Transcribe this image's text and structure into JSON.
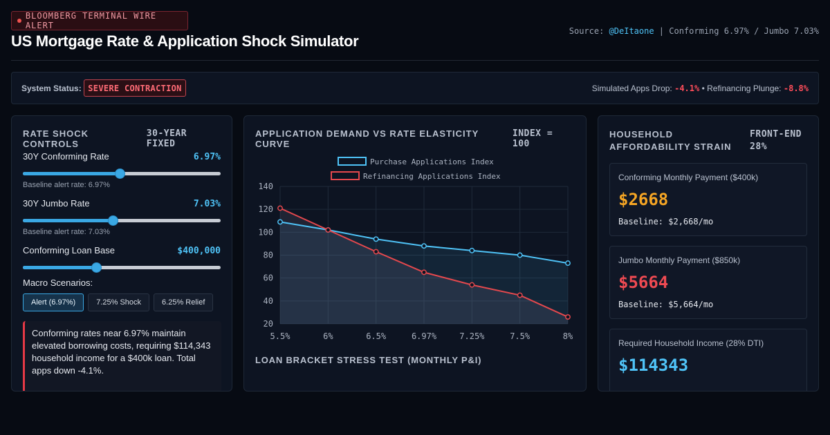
{
  "header": {
    "wire_badge": "BLOOMBERG TERMINAL WIRE ALERT",
    "title": "US Mortgage Rate & Application Shock Simulator",
    "source_prefix": "Source: ",
    "source_handle": "@DeItaone",
    "source_rest": " | Conforming 6.97% / Jumbo 7.03%"
  },
  "status": {
    "label": "System Status:",
    "badge": "SEVERE CONTRACTION",
    "apps_drop_label": "Simulated Apps Drop:",
    "apps_drop_value": "-4.1%",
    "separator": " • ",
    "refi_label": "Refinancing Plunge:",
    "refi_value": "-8.8%"
  },
  "controls": {
    "title": "RATE SHOCK CONTROLS",
    "tag": "30-YEAR FIXED",
    "sliders": [
      {
        "label": "30Y Conforming Rate",
        "value": "6.97%",
        "sub": "Baseline alert rate: 6.97%",
        "fraction": 0.49
      },
      {
        "label": "30Y Jumbo Rate",
        "value": "7.03%",
        "sub": "Baseline alert rate: 7.03%",
        "fraction": 0.455
      },
      {
        "label": "Conforming Loan Base",
        "value": "$400,000",
        "sub": "",
        "fraction": 0.37
      }
    ],
    "macro_label": "Macro Scenarios:",
    "scenarios": [
      "Alert (6.97%)",
      "7.25% Shock",
      "6.25% Relief"
    ],
    "alert_text": "Conforming rates near 6.97% maintain elevated borrowing costs, requiring $114,343 household income for a $400k loan. Total apps down -4.1%."
  },
  "chart_panel": {
    "title": "APPLICATION DEMAND VS RATE ELASTICITY CURVE",
    "tag": "INDEX = 100",
    "sub_title": "LOAN BRACKET STRESS TEST (MONTHLY P&I)"
  },
  "chart_data": {
    "type": "line",
    "categories": [
      "5.5%",
      "6%",
      "6.5%",
      "6.97%",
      "7.25%",
      "7.5%",
      "8%"
    ],
    "series": [
      {
        "name": "Purchase Applications Index",
        "values": [
          109,
          102,
          94,
          88,
          84,
          80,
          73
        ],
        "color": "#4fc3f7"
      },
      {
        "name": "Refinancing Applications Index",
        "values": [
          121,
          102,
          83,
          65,
          54,
          45,
          26
        ],
        "color": "#e5484d"
      }
    ],
    "ylim": [
      20,
      140
    ],
    "yticks": [
      20,
      40,
      60,
      80,
      100,
      120,
      140
    ],
    "grid": true,
    "legend": "top-center"
  },
  "affordability": {
    "title_line1": "HOUSEHOLD",
    "title_line2": "AFFORDABILITY STRAIN",
    "tag_line1": "FRONT-END",
    "tag_line2": "28%",
    "cards": [
      {
        "label": "Conforming Monthly Payment ($400k)",
        "value": "$2668",
        "base": "Baseline: $2,668/mo",
        "color": "#f5a524"
      },
      {
        "label": "Jumbo Monthly Payment ($850k)",
        "value": "$5664",
        "base": "Baseline: $5,664/mo",
        "color": "#ef4a52"
      },
      {
        "label": "Required Household Income (28% DTI)",
        "value": "$114343",
        "base": "",
        "color": "#4fc3f7"
      }
    ]
  }
}
